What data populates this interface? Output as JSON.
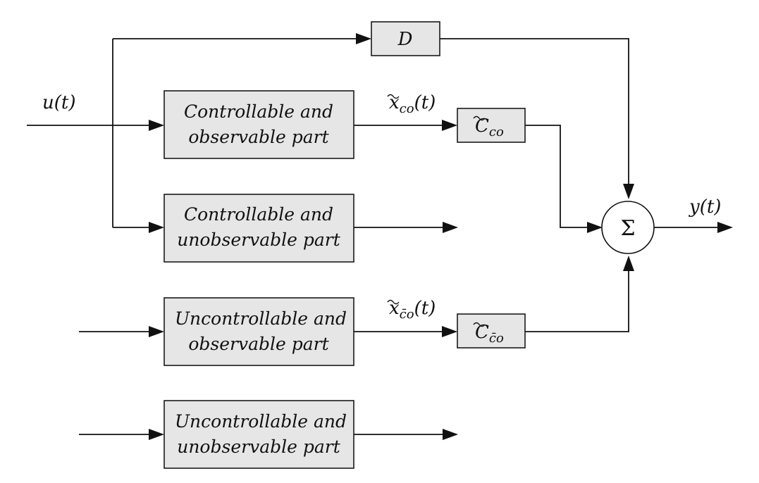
{
  "blocks": {
    "co": {
      "line1": "Controllable and",
      "line2": "observable part"
    },
    "cuo": {
      "line1": "Controllable and",
      "line2": "unobservable part"
    },
    "uco": {
      "line1": "Uncontrollable and",
      "line2": "observable part"
    },
    "ucuo": {
      "line1": "Uncontrollable and",
      "line2": "unobservable part"
    }
  },
  "gains": {
    "d": "D",
    "c_co": {
      "base": "C",
      "sub": "co"
    },
    "c_cbar_o": {
      "base": "C",
      "sub": "c̄o"
    }
  },
  "signals": {
    "u": "u(t)",
    "y": "y(t)",
    "x_co": {
      "base": "x",
      "sub": "co",
      "arg": "(t)"
    },
    "x_cbar_o": {
      "base": "x",
      "sub": "c̄o",
      "arg": "(t)"
    }
  },
  "summer": {
    "symbol": "Σ"
  }
}
